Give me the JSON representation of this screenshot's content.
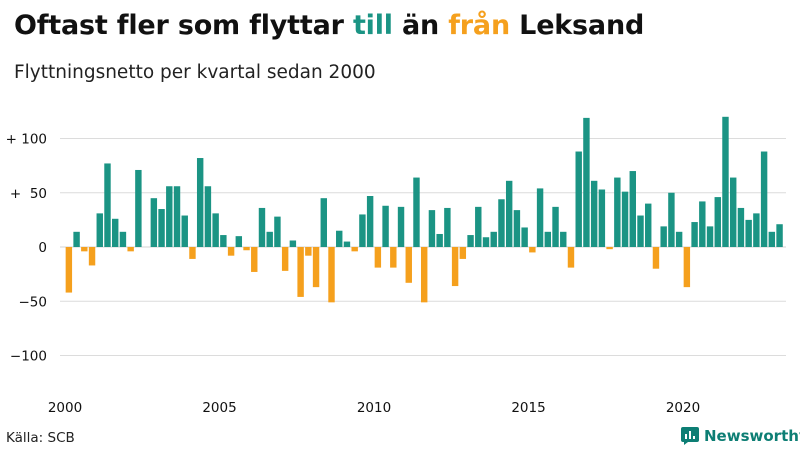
{
  "title": {
    "part1": "Oftast fler som flyttar ",
    "till": "till",
    "part2": " än ",
    "fran": "från",
    "part3": " Leksand"
  },
  "subtitle": "Flyttningsnetto per kvartal sedan 2000",
  "source": "Källa: SCB",
  "brand": {
    "name": "Newsworthy",
    "icon": "newsworthy-chart-logo-icon"
  },
  "colors": {
    "positive": "#1b9484",
    "negative": "#f5a01d",
    "grid": "#dcdcdc",
    "brand": "#0d7e74"
  },
  "chart_data": {
    "type": "bar",
    "title": "",
    "xlabel": "",
    "ylabel": "",
    "ylim": [
      -130,
      130
    ],
    "grid": true,
    "y_ticks": [
      100,
      50,
      0,
      -50,
      -100
    ],
    "y_tick_labels": [
      "+ 100",
      "+  50",
      "0",
      "−50",
      "−100"
    ],
    "x_ticks": [
      2000,
      2005,
      2010,
      2015,
      2020
    ],
    "x_tick_labels": [
      "2000",
      "2005",
      "2010",
      "2015",
      "2020"
    ],
    "x_start": 2000,
    "periods_per_year": 4,
    "values": [
      -42,
      14,
      -4,
      -17,
      31,
      77,
      26,
      14,
      -4,
      71,
      0,
      45,
      35,
      56,
      56,
      29,
      -11,
      82,
      56,
      31,
      11,
      -8,
      10,
      -3,
      -23,
      36,
      14,
      28,
      -22,
      6,
      -46,
      -8,
      -37,
      45,
      -51,
      15,
      5,
      -4,
      30,
      47,
      -19,
      38,
      -19,
      37,
      -33,
      64,
      -51,
      34,
      12,
      36,
      -36,
      -11,
      11,
      37,
      9,
      14,
      44,
      61,
      34,
      18,
      -5,
      54,
      14,
      37,
      14,
      -19,
      88,
      119,
      61,
      53,
      -2,
      64,
      51,
      70,
      29,
      40,
      -20,
      19,
      50,
      14,
      -37,
      23,
      42,
      19,
      46,
      120,
      64,
      36,
      25,
      31,
      88,
      14,
      21
    ]
  }
}
